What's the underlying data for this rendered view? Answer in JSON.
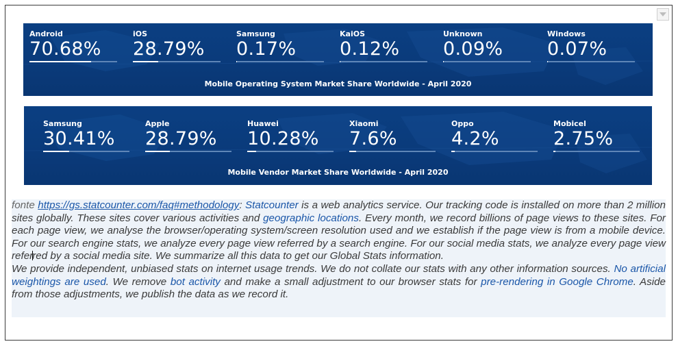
{
  "banner_os": {
    "caption": "Mobile Operating System Market Share Worldwide - April 2020",
    "stats": [
      {
        "label": "Android",
        "value": "70.68%",
        "share": 0.7068
      },
      {
        "label": "iOS",
        "value": "28.79%",
        "share": 0.2879
      },
      {
        "label": "Samsung",
        "value": "0.17%",
        "share": 0.0017
      },
      {
        "label": "KaiOS",
        "value": "0.12%",
        "share": 0.0012
      },
      {
        "label": "Unknown",
        "value": "0.09%",
        "share": 0.0009
      },
      {
        "label": "Windows",
        "value": "0.07%",
        "share": 0.0007
      }
    ]
  },
  "banner_vendor": {
    "caption": "Mobile Vendor Market Share Worldwide - April 2020",
    "stats": [
      {
        "label": "Samsung",
        "value": "30.41%",
        "share": 0.3041
      },
      {
        "label": "Apple",
        "value": "28.79%",
        "share": 0.2879
      },
      {
        "label": "Huawei",
        "value": "10.28%",
        "share": 0.1028
      },
      {
        "label": "Xiaomi",
        "value": "7.6%",
        "share": 0.076
      },
      {
        "label": "Oppo",
        "value": "4.2%",
        "share": 0.042
      },
      {
        "label": "Mobicel",
        "value": "2.75%",
        "share": 0.0275
      }
    ]
  },
  "text": {
    "fonte": "fonte",
    "link": "https://gs.statcounter.com/faq#methodology",
    "colon": ":",
    "p1_a": "Statcounter",
    "p1_b": " is a web analytics service. Our tracking code is installed on more than 2 million sites globally. These sites cover various activities and ",
    "p1_c": "geographic locations",
    "p1_d": ". Every month, we record billions of page views to these sites. For each page view, we analyse the browser/operating system/screen resolution used and we establish if the page view is from a mobile device. For our search engine stats, we analyze every page view referred by a search engine. For our social media stats, we analyze every page view refer",
    "p1_e": "red by a social media site. We summarize all this data to get our Global Stats information.",
    "p2_a": "We provide independent, unbiased stats on internet usage trends. We do not collate our stats with any other information sources. ",
    "p2_b": "No artificial weightings are used",
    "p2_c": ". We remove ",
    "p2_d": "bot activity",
    "p2_e": " and make a small adjustment to our browser stats for ",
    "p2_f": "pre-rendering in Google Chrome",
    "p2_g": ". Aside from those adjustments, we publish the data as we record it."
  }
}
